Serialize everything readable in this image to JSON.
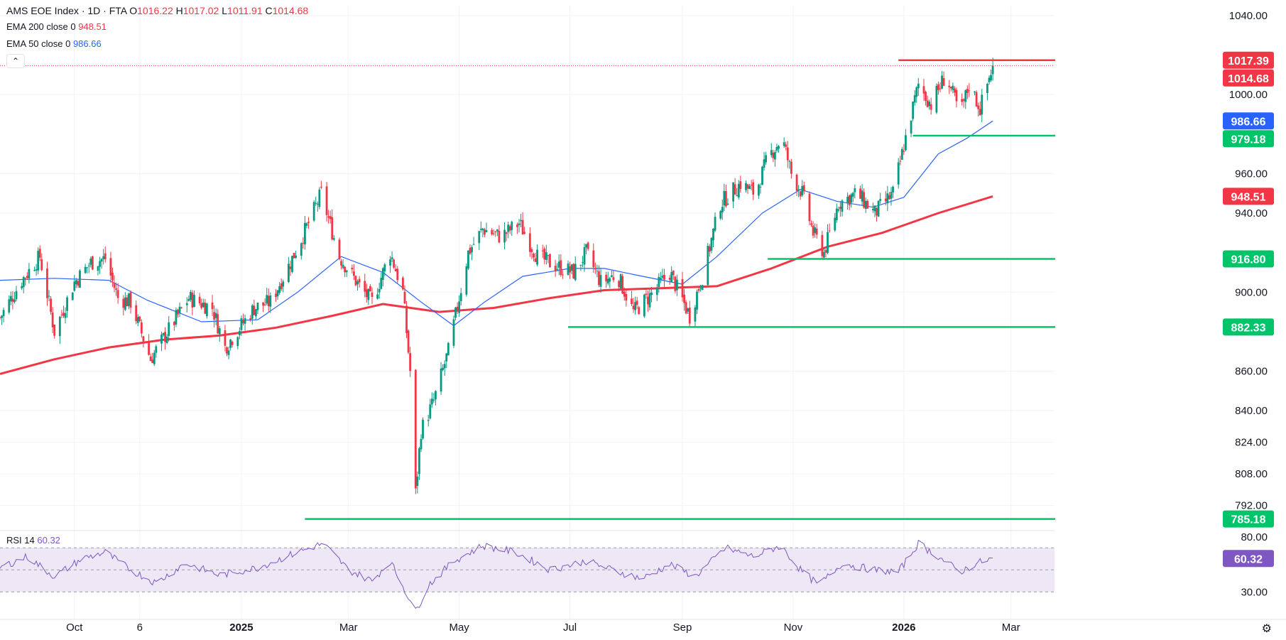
{
  "header": {
    "symbol": "AMS EOE Index · 1D · FTA",
    "ohlc": [
      {
        "k": "O",
        "v": "1016.22"
      },
      {
        "k": "H",
        "v": "1017.02"
      },
      {
        "k": "L",
        "v": "1011.91"
      },
      {
        "k": "C",
        "v": "1014.68"
      }
    ]
  },
  "indicators": {
    "ema200": {
      "label": "EMA 200 close 0",
      "value": "948.51",
      "color": "#f23645"
    },
    "ema50": {
      "label": "EMA 50 close 0",
      "value": "986.66",
      "color": "#2962ff"
    },
    "rsi": {
      "label": "RSI 14",
      "value": "60.32",
      "color": "#7e57c2"
    }
  },
  "colors": {
    "up": "#089981",
    "down": "#f23645",
    "support": "#00c46a",
    "resistance": "#f23645",
    "rsi_band": "#ede7f6"
  },
  "chart_data": {
    "type": "candlestick",
    "y_axis": {
      "ticks": [
        1040,
        1000,
        960,
        940,
        900,
        860,
        840,
        824,
        808,
        792
      ],
      "tick_labels": [
        "1040.00",
        "1000.00",
        "960.00",
        "940.00",
        "900.00",
        "860.00",
        "840.00",
        "824.00",
        "808.00",
        "792.00"
      ],
      "range": [
        780,
        1045
      ]
    },
    "x_axis": {
      "labels": [
        {
          "t": "Oct",
          "date": "2024-10-01",
          "bold": false
        },
        {
          "t": "6",
          "date": "2024-11-06",
          "bold": false
        },
        {
          "t": "2025",
          "date": "2025-01-01",
          "bold": true
        },
        {
          "t": "Mar",
          "date": "2025-03-01",
          "bold": false
        },
        {
          "t": "May",
          "date": "2025-05-01",
          "bold": false
        },
        {
          "t": "Jul",
          "date": "2025-07-01",
          "bold": false
        },
        {
          "t": "Sep",
          "date": "2025-09-01",
          "bold": false
        },
        {
          "t": "Nov",
          "date": "2025-11-01",
          "bold": false
        },
        {
          "t": "2026",
          "date": "2026-01-01",
          "bold": true
        },
        {
          "t": "Mar",
          "date": "2026-03-01",
          "bold": false
        }
      ],
      "range": [
        "2024-08-21",
        "2026-03-25"
      ]
    },
    "price_path": [
      [
        "2024-08-21",
        887
      ],
      [
        "2024-09-02",
        906
      ],
      [
        "2024-09-12",
        918
      ],
      [
        "2024-09-20",
        880
      ],
      [
        "2024-10-01",
        905
      ],
      [
        "2024-10-10",
        915
      ],
      [
        "2024-10-18",
        917
      ],
      [
        "2024-10-25",
        897
      ],
      [
        "2024-11-01",
        895
      ],
      [
        "2024-11-12",
        866
      ],
      [
        "2024-11-20",
        878
      ],
      [
        "2024-12-03",
        897
      ],
      [
        "2024-12-16",
        892
      ],
      [
        "2024-12-23",
        872
      ],
      [
        "2025-01-08",
        892
      ],
      [
        "2025-01-17",
        895
      ],
      [
        "2025-01-28",
        915
      ],
      [
        "2025-02-07",
        935
      ],
      [
        "2025-02-14",
        950
      ],
      [
        "2025-02-24",
        918
      ],
      [
        "2025-03-07",
        903
      ],
      [
        "2025-03-14",
        895
      ],
      [
        "2025-03-24",
        920
      ],
      [
        "2025-03-31",
        900
      ],
      [
        "2025-04-04",
        860
      ],
      [
        "2025-04-07",
        798
      ],
      [
        "2025-04-10",
        830
      ],
      [
        "2025-04-17",
        845
      ],
      [
        "2025-04-25",
        870
      ],
      [
        "2025-05-06",
        920
      ],
      [
        "2025-05-14",
        932
      ],
      [
        "2025-05-24",
        928
      ],
      [
        "2025-06-03",
        935
      ],
      [
        "2025-06-13",
        918
      ],
      [
        "2025-06-24",
        913
      ],
      [
        "2025-07-03",
        910
      ],
      [
        "2025-07-10",
        920
      ],
      [
        "2025-07-18",
        905
      ],
      [
        "2025-07-27",
        909
      ],
      [
        "2025-08-05",
        890
      ],
      [
        "2025-08-14",
        898
      ],
      [
        "2025-08-25",
        910
      ],
      [
        "2025-09-05",
        888
      ],
      [
        "2025-09-12",
        908
      ],
      [
        "2025-09-22",
        945
      ],
      [
        "2025-10-03",
        955
      ],
      [
        "2025-10-11",
        950
      ],
      [
        "2025-10-18",
        968
      ],
      [
        "2025-10-26",
        978
      ],
      [
        "2025-10-31",
        960
      ],
      [
        "2025-11-06",
        950
      ],
      [
        "2025-11-12",
        930
      ],
      [
        "2025-11-18",
        920
      ],
      [
        "2025-11-26",
        945
      ],
      [
        "2025-12-06",
        950
      ],
      [
        "2025-12-16",
        940
      ],
      [
        "2025-12-26",
        950
      ],
      [
        "2026-01-03",
        982
      ],
      [
        "2026-01-09",
        1005
      ],
      [
        "2026-01-16",
        995
      ],
      [
        "2026-01-24",
        1010
      ],
      [
        "2026-02-01",
        990
      ],
      [
        "2026-02-06",
        1005
      ],
      [
        "2026-02-12",
        993
      ],
      [
        "2026-02-19",
        1014.68
      ]
    ],
    "ema200_path": [
      [
        "2024-08-21",
        858.6
      ],
      [
        "2024-09-20",
        866
      ],
      [
        "2024-10-20",
        872
      ],
      [
        "2024-11-20",
        876
      ],
      [
        "2024-12-20",
        878
      ],
      [
        "2025-01-20",
        882
      ],
      [
        "2025-02-20",
        888
      ],
      [
        "2025-03-20",
        894
      ],
      [
        "2025-04-20",
        890
      ],
      [
        "2025-05-20",
        892
      ],
      [
        "2025-06-20",
        897
      ],
      [
        "2025-07-20",
        901
      ],
      [
        "2025-08-20",
        902
      ],
      [
        "2025-09-20",
        903
      ],
      [
        "2025-10-20",
        912
      ],
      [
        "2025-11-20",
        923
      ],
      [
        "2025-12-20",
        930
      ],
      [
        "2026-01-20",
        940
      ],
      [
        "2026-02-19",
        948.51
      ]
    ],
    "ema50_path": [
      [
        "2024-08-21",
        906
      ],
      [
        "2024-09-20",
        907
      ],
      [
        "2024-10-20",
        906
      ],
      [
        "2024-11-10",
        896
      ],
      [
        "2024-12-10",
        885
      ],
      [
        "2025-01-10",
        886
      ],
      [
        "2025-02-01",
        900
      ],
      [
        "2025-02-25",
        918
      ],
      [
        "2025-03-20",
        910
      ],
      [
        "2025-04-10",
        895
      ],
      [
        "2025-04-28",
        883
      ],
      [
        "2025-05-15",
        895
      ],
      [
        "2025-06-05",
        908
      ],
      [
        "2025-07-01",
        912
      ],
      [
        "2025-07-20",
        912
      ],
      [
        "2025-08-10",
        908
      ],
      [
        "2025-09-01",
        904
      ],
      [
        "2025-09-20",
        918
      ],
      [
        "2025-10-15",
        940
      ],
      [
        "2025-11-05",
        952
      ],
      [
        "2025-11-25",
        946
      ],
      [
        "2025-12-15",
        943
      ],
      [
        "2026-01-01",
        948
      ],
      [
        "2026-01-20",
        970
      ],
      [
        "2026-02-05",
        978
      ],
      [
        "2026-02-19",
        986.66
      ]
    ],
    "levels": [
      {
        "value": 1017.39,
        "label": "1017.39",
        "kind": "resistance",
        "from": "2025-12-29"
      },
      {
        "value": 979.18,
        "label": "979.18",
        "kind": "support",
        "from": "2026-01-06"
      },
      {
        "value": 916.8,
        "label": "916.80",
        "kind": "support",
        "from": "2025-10-18"
      },
      {
        "value": 882.33,
        "label": "882.33",
        "kind": "support",
        "from": "2025-06-30"
      },
      {
        "value": 785.18,
        "label": "785.18",
        "kind": "support",
        "from": "2025-02-05"
      }
    ],
    "price_tags": [
      {
        "value": 1014.68,
        "label": "1014.68",
        "color": "#f23645"
      },
      {
        "value": 986.66,
        "label": "986.66",
        "color": "#2962ff"
      },
      {
        "value": 948.51,
        "label": "948.51",
        "color": "#f23645"
      }
    ],
    "last_price": 1014.68,
    "rsi": {
      "y_range": [
        5,
        85
      ],
      "ticks": [
        80,
        30
      ],
      "tick_labels": [
        "80.00",
        "30.00"
      ],
      "band": [
        70,
        30
      ],
      "mid": 50,
      "current": 60.32,
      "path": [
        [
          "2024-08-21",
          52
        ],
        [
          "2024-09-05",
          62
        ],
        [
          "2024-09-20",
          44
        ],
        [
          "2024-10-05",
          60
        ],
        [
          "2024-10-18",
          66
        ],
        [
          "2024-11-01",
          50
        ],
        [
          "2024-11-15",
          38
        ],
        [
          "2024-12-01",
          56
        ],
        [
          "2024-12-20",
          45
        ],
        [
          "2025-01-10",
          52
        ],
        [
          "2025-02-01",
          66
        ],
        [
          "2025-02-15",
          74
        ],
        [
          "2025-03-01",
          50
        ],
        [
          "2025-03-14",
          40
        ],
        [
          "2025-03-24",
          58
        ],
        [
          "2025-04-04",
          22
        ],
        [
          "2025-04-07",
          12
        ],
        [
          "2025-04-14",
          36
        ],
        [
          "2025-04-28",
          58
        ],
        [
          "2025-05-14",
          72
        ],
        [
          "2025-06-01",
          66
        ],
        [
          "2025-06-20",
          50
        ],
        [
          "2025-07-10",
          58
        ],
        [
          "2025-07-28",
          48
        ],
        [
          "2025-08-10",
          42
        ],
        [
          "2025-08-25",
          55
        ],
        [
          "2025-09-08",
          44
        ],
        [
          "2025-09-25",
          70
        ],
        [
          "2025-10-10",
          62
        ],
        [
          "2025-10-25",
          72
        ],
        [
          "2025-11-05",
          50
        ],
        [
          "2025-11-15",
          36
        ],
        [
          "2025-11-28",
          56
        ],
        [
          "2025-12-15",
          50
        ],
        [
          "2025-12-29",
          48
        ],
        [
          "2026-01-09",
          74
        ],
        [
          "2026-01-20",
          62
        ],
        [
          "2026-02-01",
          48
        ],
        [
          "2026-02-10",
          56
        ],
        [
          "2026-02-19",
          60.32
        ]
      ]
    }
  }
}
